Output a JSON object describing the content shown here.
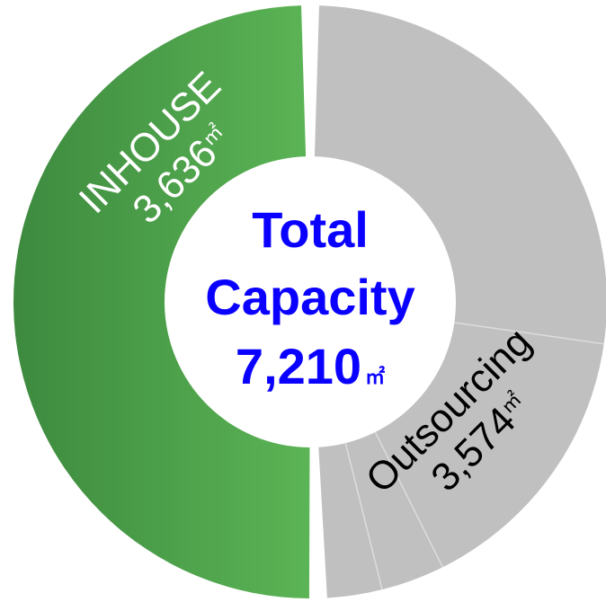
{
  "chart_data": {
    "type": "pie",
    "donut": true,
    "categories": [
      "INHOUSE",
      "Outsourcing"
    ],
    "values": [
      3636,
      3574
    ],
    "value_labels": [
      "3,636",
      "3,574"
    ],
    "unit": "㎡",
    "colors": {
      "inhouse_start": "#3d8a3f",
      "inhouse_end": "#5bb455",
      "outsourcing": "#c0c0c0",
      "segment_line": "#dcdcdc",
      "center_text": "#0a00ff",
      "inhouse_text": "#ffffff",
      "outsourcing_text": "#000000"
    },
    "center": {
      "line1": "Total",
      "line2": "Capacity",
      "value": "7,210",
      "unit": "㎡"
    }
  }
}
